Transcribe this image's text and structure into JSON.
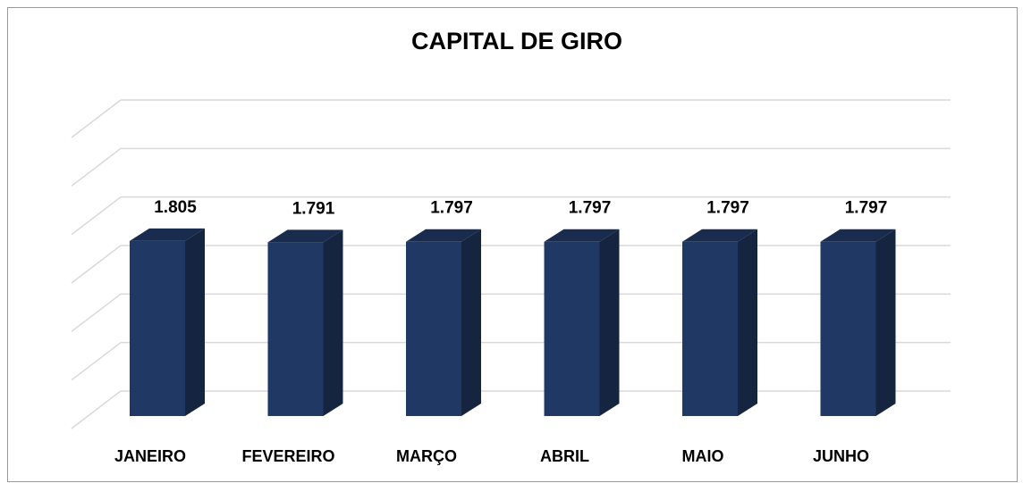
{
  "chart_data": {
    "type": "bar3d",
    "title": "CAPITAL DE GIRO",
    "categories": [
      "JANEIRO",
      "FEVEREIRO",
      "MARÇO",
      "ABRIL",
      "MAIO",
      "JUNHO"
    ],
    "values": [
      1805,
      1791,
      1797,
      1797,
      1797,
      1797
    ],
    "value_labels": [
      "1.805",
      "1.791",
      "1.797",
      "1.797",
      "1.797",
      "1.797"
    ],
    "color": "#203864",
    "ylim": [
      0,
      3000
    ],
    "yticks": [
      0,
      500,
      1000,
      1500,
      2000,
      2500,
      3000
    ],
    "grid": true
  }
}
